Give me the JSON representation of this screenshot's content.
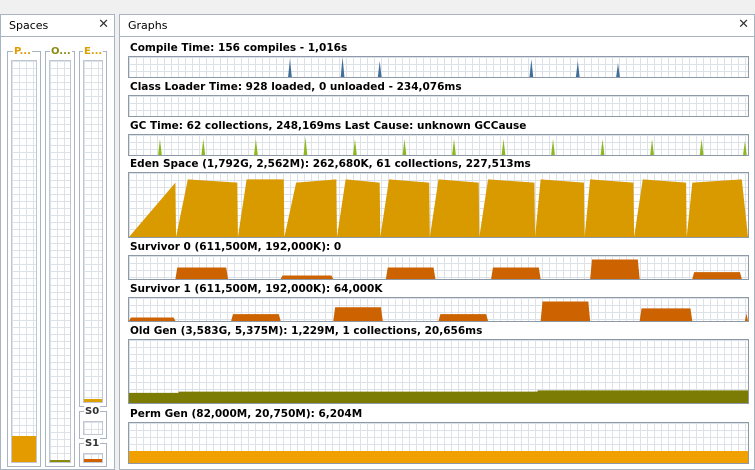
{
  "spaces_panel": {
    "title": "Spaces",
    "close_glyph": "✕",
    "spaces": [
      {
        "label": "P...",
        "color": "#e39b00",
        "fill": 0.065
      },
      {
        "label": "O...",
        "color": "#8a8a10",
        "fill": 0.005
      },
      {
        "label": "E...",
        "color": "#dca000",
        "fill": 0.008
      },
      {
        "label": "S0",
        "color": "#d06000",
        "fill": 0.0
      },
      {
        "label": "S1",
        "color": "#d06000",
        "fill": 0.33
      }
    ]
  },
  "graphs_panel": {
    "title": "Graphs",
    "close_glyph": "✕",
    "graphs": [
      {
        "id": "compile",
        "title": "Compile Time: 156 compiles - 1,016s",
        "color": "#3f6e9a",
        "fill": "#3f6e9a",
        "kind": "spikes",
        "values": [
          [
            0.26,
            0.9
          ],
          [
            0.345,
            1.0
          ],
          [
            0.405,
            0.8
          ],
          [
            0.65,
            0.9
          ],
          [
            0.725,
            0.8
          ],
          [
            0.79,
            0.7
          ]
        ]
      },
      {
        "id": "classloader",
        "title": "Class Loader Time: 928 loaded, 0 unloaded - 234,076ms",
        "color": "#4b7fb0",
        "fill": "#4b7fb0",
        "kind": "spikes",
        "values": []
      },
      {
        "id": "gc",
        "title": "GC Time: 62 collections, 248,169ms Last Cause: unknown GCCause",
        "color": "#7aa31b",
        "fill": "#8cb81c",
        "kind": "spikes",
        "values": [
          [
            0.05,
            0.8
          ],
          [
            0.12,
            0.8
          ],
          [
            0.205,
            0.8
          ],
          [
            0.285,
            0.9
          ],
          [
            0.365,
            0.8
          ],
          [
            0.445,
            0.8
          ],
          [
            0.525,
            0.8
          ],
          [
            0.605,
            0.8
          ],
          [
            0.685,
            0.8
          ],
          [
            0.765,
            0.8
          ],
          [
            0.845,
            0.8
          ],
          [
            0.925,
            0.8
          ],
          [
            0.995,
            0.7
          ]
        ]
      },
      {
        "id": "eden",
        "title": "Eden Space (1,792G, 2,562M): 262,680K, 61 collections, 227,513ms",
        "color": "#cf8e00",
        "fill": "#d99a00",
        "kind": "saw",
        "values": [
          [
            0.0,
            0.0
          ],
          [
            0.075,
            0.85
          ],
          [
            0.095,
            0.9
          ],
          [
            0.175,
            0.85
          ],
          [
            0.19,
            0.9
          ],
          [
            0.25,
            0.9
          ],
          [
            0.27,
            0.85
          ],
          [
            0.335,
            0.9
          ],
          [
            0.35,
            0.9
          ],
          [
            0.405,
            0.85
          ],
          [
            0.42,
            0.9
          ],
          [
            0.485,
            0.85
          ],
          [
            0.5,
            0.9
          ],
          [
            0.565,
            0.85
          ],
          [
            0.58,
            0.9
          ],
          [
            0.655,
            0.85
          ],
          [
            0.665,
            0.9
          ],
          [
            0.735,
            0.85
          ],
          [
            0.745,
            0.9
          ],
          [
            0.815,
            0.85
          ],
          [
            0.83,
            0.9
          ],
          [
            0.9,
            0.85
          ],
          [
            0.91,
            0.85
          ],
          [
            0.99,
            0.9
          ]
        ]
      },
      {
        "id": "s0",
        "title": "Survivor 0 (611,500M, 192,000K): 0",
        "color": "#c05a00",
        "fill": "#cc6200",
        "kind": "blocks",
        "values": [
          [
            0.075,
            0.16,
            0.5
          ],
          [
            0.245,
            0.33,
            0.15
          ],
          [
            0.415,
            0.495,
            0.5
          ],
          [
            0.585,
            0.665,
            0.5
          ],
          [
            0.745,
            0.825,
            0.85
          ],
          [
            0.91,
            0.99,
            0.3
          ]
        ]
      },
      {
        "id": "s1",
        "title": "Survivor 1 (611,500M, 192,000K): 64,000K",
        "color": "#c05a00",
        "fill": "#cc6200",
        "kind": "blocks",
        "values": [
          [
            0.0,
            0.075,
            0.15
          ],
          [
            0.165,
            0.245,
            0.3
          ],
          [
            0.33,
            0.41,
            0.6
          ],
          [
            0.5,
            0.58,
            0.3
          ],
          [
            0.665,
            0.745,
            0.85
          ],
          [
            0.825,
            0.91,
            0.55
          ],
          [
            0.995,
            1.0,
            0.4
          ]
        ]
      },
      {
        "id": "old",
        "title": "Old Gen (3,583G, 5,375M): 1,229M, 1 collections, 20,656ms",
        "color": "#6e6e00",
        "fill": "#7c7c05",
        "kind": "steps",
        "values": [
          [
            0.0,
            0.16
          ],
          [
            0.08,
            0.18
          ],
          [
            0.66,
            0.2
          ],
          [
            1.0,
            0.2
          ]
        ]
      },
      {
        "id": "perm",
        "title": "Perm Gen (82,000M, 20,750M): 6,204M",
        "color": "#e39b00",
        "fill": "#f0a000",
        "kind": "steps",
        "values": [
          [
            0.0,
            0.3
          ],
          [
            1.0,
            0.3
          ]
        ]
      }
    ]
  }
}
